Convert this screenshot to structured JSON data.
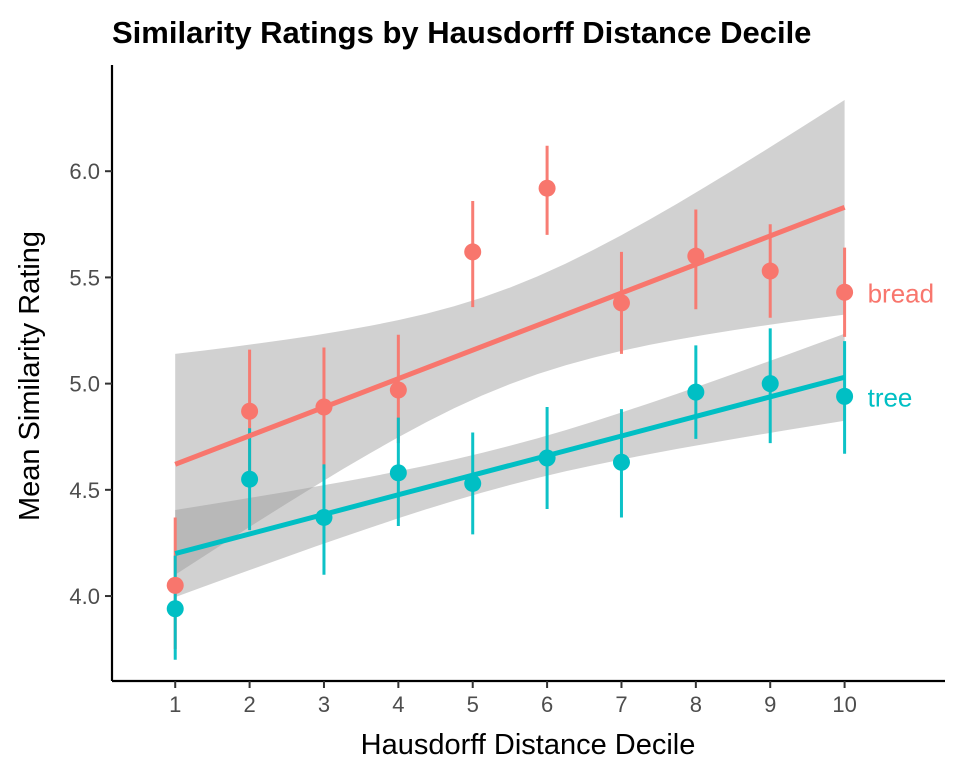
{
  "chart_data": {
    "type": "scatter",
    "title": "Similarity Ratings by Hausdorff Distance Decile",
    "xlabel": "Hausdorff Distance Decile",
    "ylabel": "Mean Similarity Rating",
    "x": [
      1,
      2,
      3,
      4,
      5,
      6,
      7,
      8,
      9,
      10
    ],
    "x_ticks": [
      "1",
      "2",
      "3",
      "4",
      "5",
      "6",
      "7",
      "8",
      "9",
      "10"
    ],
    "y_ticks": [
      "4.0",
      "4.5",
      "5.0",
      "5.5",
      "6.0"
    ],
    "ylim": [
      3.6,
      6.5
    ],
    "xlim": [
      0.15,
      11.35
    ],
    "grid": false,
    "legend": "direct labels at right end of each series",
    "series": [
      {
        "name": "bread",
        "color": "#F8766D",
        "values": [
          4.05,
          4.87,
          4.89,
          4.97,
          5.62,
          5.92,
          5.38,
          5.6,
          5.53,
          5.43
        ],
        "error_low": [
          3.75,
          4.58,
          4.6,
          4.72,
          5.36,
          5.7,
          5.14,
          5.35,
          5.31,
          5.22
        ],
        "error_high": [
          4.37,
          5.16,
          5.17,
          5.23,
          5.86,
          6.12,
          5.62,
          5.82,
          5.75,
          5.64
        ],
        "fit": {
          "start": 4.62,
          "end": 5.83
        },
        "band_low": [
          4.1,
          5.33
        ],
        "band_high": [
          5.14,
          6.34
        ]
      },
      {
        "name": "tree",
        "color": "#00BFC4",
        "values": [
          3.94,
          4.55,
          4.37,
          4.58,
          4.53,
          4.65,
          4.63,
          4.96,
          5.0,
          4.94
        ],
        "error_low": [
          3.7,
          4.31,
          4.1,
          4.33,
          4.29,
          4.41,
          4.37,
          4.74,
          4.72,
          4.67
        ],
        "error_high": [
          4.19,
          4.79,
          4.62,
          4.84,
          4.77,
          4.89,
          4.88,
          5.18,
          5.26,
          5.2
        ],
        "fit": {
          "start": 4.2,
          "end": 5.03
        },
        "band_low": [
          3.99,
          4.83
        ],
        "band_high": [
          4.4,
          5.24
        ]
      }
    ]
  }
}
